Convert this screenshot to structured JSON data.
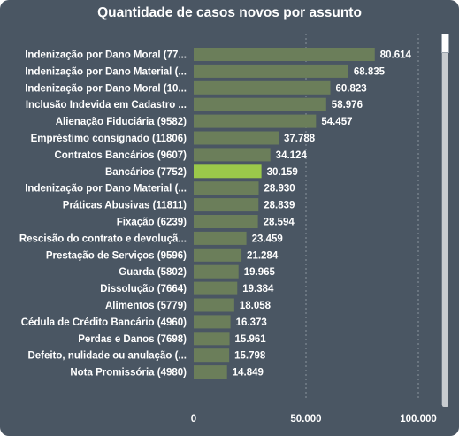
{
  "title": "Quantidade de casos novos por assunto",
  "colors": {
    "background": "#4a5663",
    "bar": "#6b7e5a",
    "highlight": "#9bc94a",
    "text": "#ffffff",
    "grid": "#8a949e"
  },
  "chart_data": {
    "type": "bar",
    "orientation": "horizontal",
    "title": "Quantidade de casos novos por assunto",
    "categories": [
      "Indenização por Dano Moral (77...",
      "Indenização por Dano Material (...",
      "Indenização por Dano Moral (10...",
      "Inclusão Indevida em Cadastro ...",
      "Alienação Fiduciária (9582)",
      "Empréstimo consignado (11806)",
      "Contratos Bancários (9607)",
      "Bancários (7752)",
      "Indenização por Dano Material (...",
      "Práticas Abusivas (11811)",
      "Fixação (6239)",
      "Rescisão do contrato e devoluçã...",
      "Prestação de Serviços (9596)",
      "Guarda (5802)",
      "Dissolução (7664)",
      "Alimentos (5779)",
      "Cédula de Crédito Bancário (4960)",
      "Perdas e Danos (7698)",
      "Defeito, nulidade ou anulação (...",
      "Nota Promissória (4980)"
    ],
    "values": [
      80614,
      68835,
      60823,
      58976,
      54457,
      37788,
      34124,
      30159,
      28930,
      28839,
      28594,
      23459,
      21284,
      19965,
      19384,
      18058,
      16373,
      15961,
      15798,
      14849
    ],
    "value_labels": [
      "80.614",
      "68.835",
      "60.823",
      "58.976",
      "54.457",
      "37.788",
      "34.124",
      "30.159",
      "28.930",
      "28.839",
      "28.594",
      "23.459",
      "21.284",
      "19.965",
      "19.384",
      "18.058",
      "16.373",
      "15.961",
      "15.798",
      "14.849"
    ],
    "highlight_index": 7,
    "xlim": [
      0,
      100000
    ],
    "xticks": [
      0,
      50000,
      100000
    ],
    "xtick_labels": [
      "0",
      "50.000",
      "100.000"
    ],
    "grid": "vertical dotted"
  }
}
